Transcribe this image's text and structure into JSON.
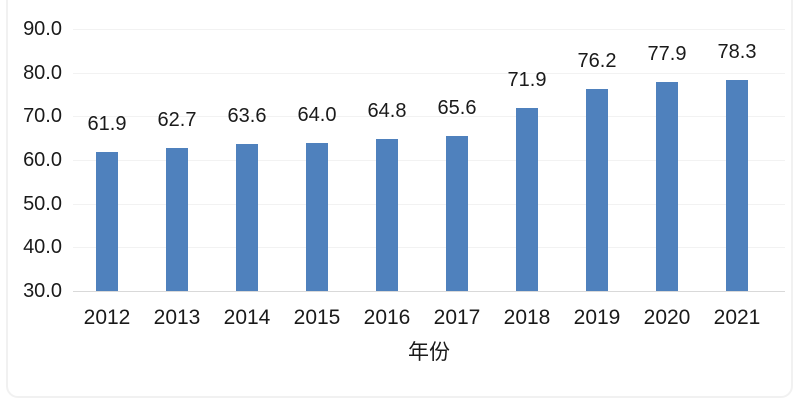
{
  "chart": {
    "bar_color": "#4F81BD",
    "gridline_color": "#f2f2f2",
    "axis_line_color": "#d9d9d9",
    "text_color": "#1a1a1a",
    "frame_color": "#f1f1f1"
  },
  "chart_data": {
    "type": "bar",
    "categories": [
      "2012",
      "2013",
      "2014",
      "2015",
      "2016",
      "2017",
      "2018",
      "2019",
      "2020",
      "2021"
    ],
    "values": [
      61.9,
      62.7,
      63.6,
      64.0,
      64.8,
      65.6,
      71.9,
      76.2,
      77.9,
      78.3
    ],
    "data_labels": [
      "61.9",
      "62.7",
      "63.6",
      "64.0",
      "64.8",
      "65.6",
      "71.9",
      "76.2",
      "77.9",
      "78.3"
    ],
    "title": "",
    "xlabel": "年份",
    "ylabel": "",
    "ylim": [
      30,
      90
    ],
    "yticks": [
      30,
      40,
      50,
      60,
      70,
      80,
      90
    ],
    "ytick_labels": [
      "30.0",
      "40.0",
      "50.0",
      "60.0",
      "70.0",
      "80.0",
      "90.0"
    ],
    "grid": true,
    "legend": false,
    "data_labels_shown": true
  }
}
